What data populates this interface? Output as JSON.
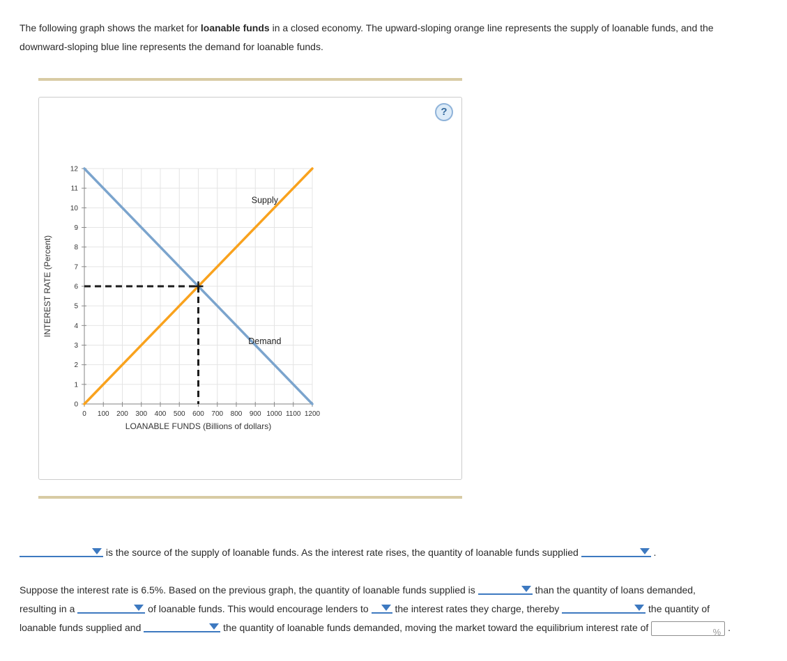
{
  "intro_segments": [
    {
      "t": "text",
      "v": "The following graph shows the market for "
    },
    {
      "t": "bold",
      "v": "loanable funds"
    },
    {
      "t": "text",
      "v": " in a closed economy. The upward-sloping orange line represents the supply of loanable funds, and the downward-sloping blue line represents the demand for loanable funds."
    }
  ],
  "panel": {
    "help_icon": "?"
  },
  "chart_data": {
    "type": "line",
    "title": "",
    "xlabel": "LOANABLE FUNDS (Billions of dollars)",
    "ylabel": "INTEREST RATE (Percent)",
    "xlim": [
      0,
      1200
    ],
    "ylim": [
      0,
      12
    ],
    "x_ticks": [
      0,
      100,
      200,
      300,
      400,
      500,
      600,
      700,
      800,
      900,
      1000,
      1100,
      1200
    ],
    "y_ticks": [
      0,
      1,
      2,
      3,
      4,
      5,
      6,
      7,
      8,
      9,
      10,
      11,
      12
    ],
    "grid": true,
    "legend_position": "none",
    "series": [
      {
        "name": "Demand",
        "color": "#7ba4cd",
        "points": [
          [
            0,
            12
          ],
          [
            1200,
            0
          ]
        ],
        "label_at": [
          950,
          3.05
        ]
      },
      {
        "name": "Supply",
        "color": "#f9a21d",
        "points": [
          [
            0,
            0
          ],
          [
            1200,
            12
          ]
        ],
        "label_at": [
          950,
          10.25
        ]
      }
    ],
    "equilibrium": {
      "x": 600,
      "y": 6,
      "dash_color": "#1c1c1c"
    }
  },
  "q1_segments": [
    {
      "t": "dropdown",
      "w": 120,
      "name": "dropdown-supply-source"
    },
    {
      "t": "text",
      "v": " is the source of the supply of loanable funds. As the interest rate rises, the quantity of loanable funds supplied "
    },
    {
      "t": "dropdown",
      "w": 100,
      "name": "dropdown-quantity-supplied-response"
    },
    {
      "t": "text",
      "v": " ."
    }
  ],
  "q2_segments": [
    {
      "t": "text",
      "v": "Suppose the interest rate is 6.5%. Based on the previous graph, the quantity of loanable funds supplied is "
    },
    {
      "t": "dropdown",
      "w": 78,
      "name": "dropdown-supplied-vs-demanded"
    },
    {
      "t": "text",
      "v": " than the quantity of loans demanded, resulting in a "
    },
    {
      "t": "dropdown",
      "w": 97,
      "name": "dropdown-surplus-shortage"
    },
    {
      "t": "text",
      "v": " of loanable funds. This would encourage lenders to "
    },
    {
      "t": "dropdown",
      "w": 30,
      "name": "dropdown-raise-lower-rates"
    },
    {
      "t": "text",
      "v": " the interest rates they charge, thereby "
    },
    {
      "t": "dropdown",
      "w": 120,
      "name": "dropdown-effect-on-supplied"
    },
    {
      "t": "text",
      "v": " the quantity of loanable funds supplied and "
    },
    {
      "t": "dropdown",
      "w": 110,
      "name": "dropdown-effect-on-demanded"
    },
    {
      "t": "text",
      "v": " the quantity of loanable funds demanded, moving the market toward the equilibrium interest rate of "
    },
    {
      "t": "input",
      "unit": "%",
      "name": "equilibrium-rate-input"
    },
    {
      "t": "text",
      "v": " ."
    }
  ],
  "colors": {
    "supply_line": "#f9a21d",
    "demand_line": "#7ba4cd",
    "dashed": "#1c1c1c",
    "divider": "#d8cba4",
    "dropdown_blue": "#3d79c0",
    "panel_border": "#cccccc"
  }
}
